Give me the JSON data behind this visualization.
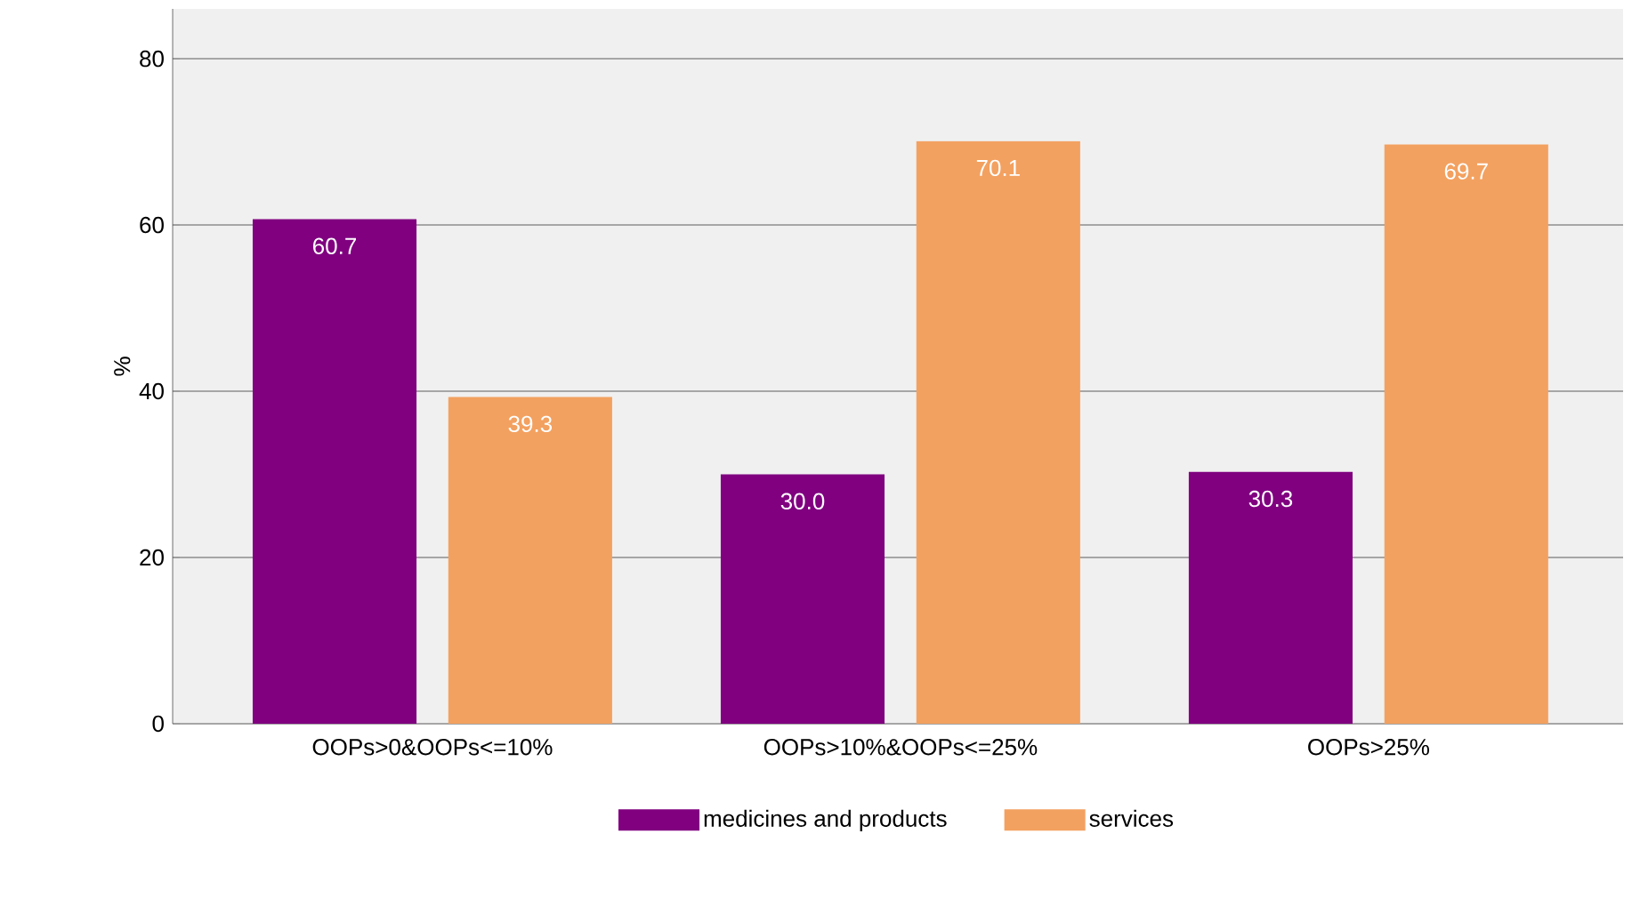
{
  "chart_data": {
    "type": "bar",
    "ylabel": "%",
    "categories": [
      "OOPs>0&OOPs<=10%",
      "OOPs>10%&OOPs<=25%",
      "OOPs>25%"
    ],
    "series": [
      {
        "name": "medicines and products",
        "color": "#800080",
        "values": [
          60.7,
          30.0,
          30.3
        ],
        "value_labels": [
          "60.7",
          "30.0",
          "30.3"
        ]
      },
      {
        "name": "services",
        "color": "#f3a160",
        "values": [
          39.3,
          70.1,
          69.7
        ],
        "value_labels": [
          "39.3",
          "70.1",
          "69.7"
        ]
      }
    ],
    "ylim": [
      0,
      86
    ],
    "yticks": [
      0,
      20,
      40,
      60,
      80
    ],
    "grid": "y",
    "legend": "bottom"
  }
}
